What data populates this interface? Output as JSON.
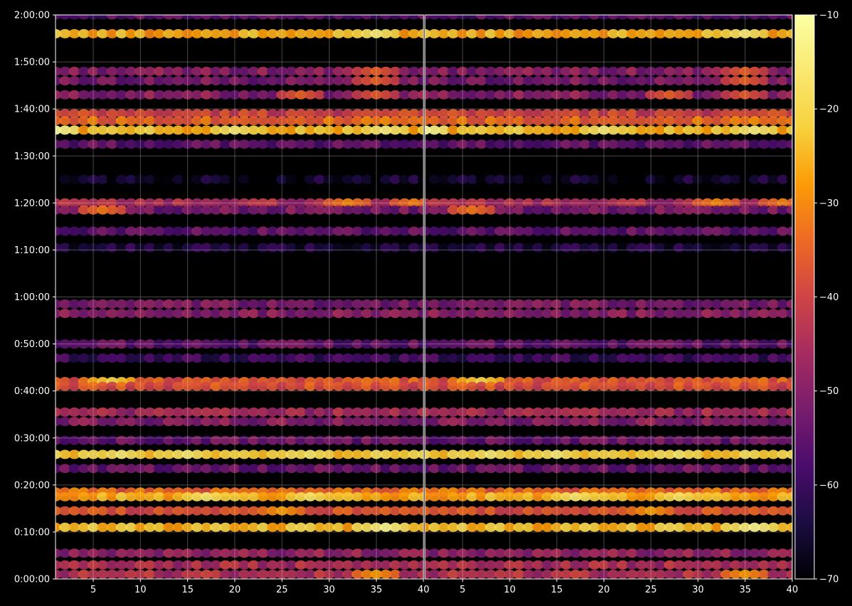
{
  "chart_data": {
    "type": "heatmap",
    "title": "",
    "panels": [
      {
        "name": "",
        "xlim": [
          1,
          40
        ],
        "x_ticks": [
          "5",
          "10",
          "15",
          "20",
          "25",
          "30",
          "35",
          "40"
        ]
      },
      {
        "name": "",
        "xlim": [
          1,
          40
        ],
        "x_ticks": [
          "5",
          "10",
          "15",
          "20",
          "25",
          "30",
          "35",
          "40"
        ]
      }
    ],
    "xlabel": "",
    "ylabel": "",
    "ylim_seconds": [
      0,
      7200
    ],
    "y_ticks": [
      "0:00:00",
      "0:10:00",
      "0:20:00",
      "0:30:00",
      "0:40:00",
      "0:50:00",
      "1:00:00",
      "1:10:00",
      "1:20:00",
      "1:30:00",
      "1:40:00",
      "1:50:00",
      "2:00:00"
    ],
    "colorbar": {
      "colormap": "inferno",
      "range": [
        -70,
        -10
      ],
      "ticks": [
        "−10",
        "−20",
        "−30",
        "−40",
        "−50",
        "−60",
        "−70"
      ]
    },
    "grid": true,
    "background": "#000000",
    "bands": [
      {
        "time": "1:56:00",
        "level": -26,
        "peaks": [
          [
            1,
            -20
          ],
          [
            35,
            -15
          ]
        ]
      },
      {
        "time": "2:00:00",
        "level": -56
      },
      {
        "time": "1:48:00",
        "level": -50,
        "peaks": [
          [
            35,
            -35
          ]
        ]
      },
      {
        "time": "1:46:00",
        "level": -52,
        "peaks": [
          [
            35,
            -35
          ]
        ]
      },
      {
        "time": "1:43:00",
        "level": -50,
        "peaks": [
          [
            27,
            -35
          ],
          [
            35,
            -36
          ]
        ]
      },
      {
        "time": "1:39:00",
        "level": -40
      },
      {
        "time": "1:37:30",
        "level": -34
      },
      {
        "time": "1:35:30",
        "level": -24,
        "peaks": [
          [
            1,
            -10
          ],
          [
            20,
            -15
          ],
          [
            36,
            -14
          ]
        ]
      },
      {
        "time": "1:32:30",
        "level": -55
      },
      {
        "time": "1:25:00",
        "level": -66
      },
      {
        "time": "1:20:00",
        "level": -45,
        "peaks": [
          [
            32,
            -30
          ],
          [
            39,
            -31
          ]
        ]
      },
      {
        "time": "1:18:30",
        "level": -52,
        "peaks": [
          [
            6,
            -32
          ]
        ]
      },
      {
        "time": "1:14:00",
        "level": -55
      },
      {
        "time": "1:10:30",
        "level": -64
      },
      {
        "time": "0:58:30",
        "level": -52
      },
      {
        "time": "0:56:30",
        "level": -50
      },
      {
        "time": "0:50:00",
        "level": -55
      },
      {
        "time": "0:47:00",
        "level": -60
      },
      {
        "time": "0:42:00",
        "level": -36,
        "peaks": [
          [
            7,
            -20
          ]
        ]
      },
      {
        "time": "0:41:00",
        "level": -38
      },
      {
        "time": "0:35:30",
        "level": -46
      },
      {
        "time": "0:33:30",
        "level": -50
      },
      {
        "time": "0:29:30",
        "level": -54
      },
      {
        "time": "0:26:30",
        "level": -22,
        "peaks": [
          [
            8,
            -15
          ],
          [
            15,
            -15
          ],
          [
            28,
            -16
          ]
        ]
      },
      {
        "time": "0:23:30",
        "level": -54
      },
      {
        "time": "0:18:30",
        "level": -34
      },
      {
        "time": "0:17:30",
        "level": -26,
        "peaks": [
          [
            17,
            -16
          ],
          [
            28,
            -17
          ]
        ]
      },
      {
        "time": "0:14:30",
        "level": -38,
        "peaks": [
          [
            25,
            -27
          ]
        ]
      },
      {
        "time": "0:11:00",
        "level": -24,
        "peaks": [
          [
            36,
            -12
          ]
        ]
      },
      {
        "time": "0:05:30",
        "level": -48
      },
      {
        "time": "0:03:00",
        "level": -45
      },
      {
        "time": "0:01:00",
        "level": -44,
        "peaks": [
          [
            35,
            -28
          ]
        ]
      }
    ]
  }
}
